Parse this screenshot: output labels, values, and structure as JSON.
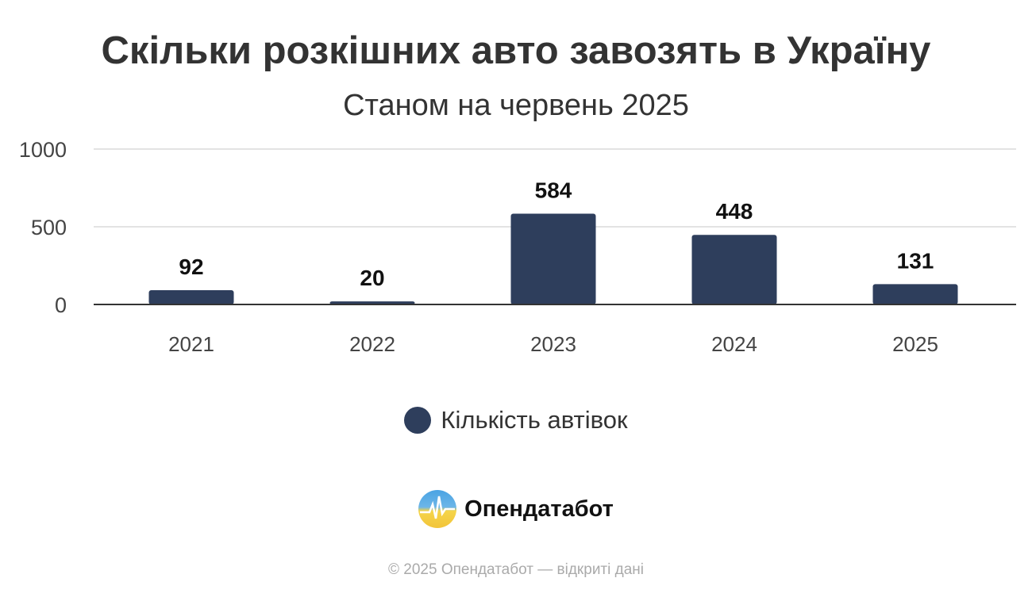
{
  "chart_data": {
    "type": "bar",
    "title": "Скільки розкішних авто завозять в Україну",
    "subtitle": "Станом на червень 2025",
    "categories": [
      "2021",
      "2022",
      "2023",
      "2024",
      "2025"
    ],
    "series": [
      {
        "name": "Кількість автівок",
        "values": [
          92,
          20,
          584,
          448,
          131
        ],
        "color": "#2e3e5c"
      }
    ],
    "ylim": [
      0,
      1000
    ],
    "yticks": [
      0,
      500,
      1000
    ],
    "grid": true,
    "legend_position": "bottom-center",
    "xlabel": "",
    "ylabel": ""
  },
  "branding": {
    "logo_text": "Опендатабот"
  },
  "footer": "© 2025 Опендатабот — відкриті дані"
}
